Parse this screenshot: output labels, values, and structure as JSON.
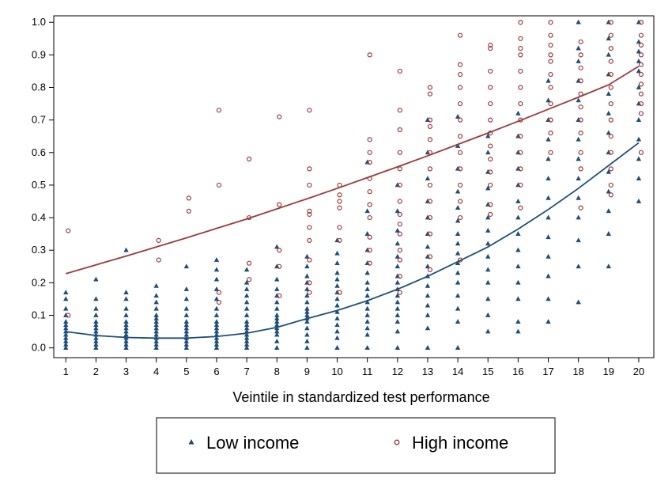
{
  "chart_data": {
    "type": "scatter",
    "xlabel": "Veintile in standardized test performance",
    "ylabel": "",
    "xlim": [
      0.6,
      20.5
    ],
    "ylim": [
      -0.03,
      1.02
    ],
    "x_ticks": [
      "1",
      "2",
      "3",
      "4",
      "5",
      "6",
      "7",
      "8",
      "9",
      "10",
      "11",
      "12",
      "13",
      "14",
      "15",
      "16",
      "17",
      "18",
      "19",
      "20"
    ],
    "y_ticks": [
      "0.0",
      "0.1",
      "0.2",
      "0.3",
      "0.4",
      "0.5",
      "0.6",
      "0.7",
      "0.8",
      "0.9",
      "1.0"
    ],
    "grid": false,
    "legend_position": "bottom",
    "series": [
      {
        "name": "Low income",
        "marker": "triangle",
        "color": "#1f4e79",
        "fit_line": {
          "x": [
            1,
            2,
            3,
            4,
            5,
            6,
            7,
            8,
            9,
            10,
            11,
            12,
            13,
            14,
            15,
            16,
            17,
            18,
            19,
            20
          ],
          "y": [
            0.05,
            0.038,
            0.032,
            0.03,
            0.03,
            0.035,
            0.045,
            0.063,
            0.09,
            0.115,
            0.145,
            0.18,
            0.22,
            0.265,
            0.31,
            0.365,
            0.425,
            0.49,
            0.56,
            0.63
          ]
        },
        "points": [
          {
            "x": 1,
            "values": [
              0.0,
              0.01,
              0.02,
              0.03,
              0.04,
              0.05,
              0.06,
              0.07,
              0.08,
              0.1,
              0.12,
              0.15,
              0.17
            ]
          },
          {
            "x": 2,
            "values": [
              0.0,
              0.01,
              0.02,
              0.03,
              0.04,
              0.05,
              0.06,
              0.07,
              0.08,
              0.1,
              0.12,
              0.15,
              0.21
            ]
          },
          {
            "x": 3,
            "values": [
              0.0,
              0.01,
              0.02,
              0.03,
              0.04,
              0.05,
              0.06,
              0.07,
              0.08,
              0.1,
              0.12,
              0.15,
              0.17,
              0.3
            ]
          },
          {
            "x": 4,
            "values": [
              0.0,
              0.01,
              0.02,
              0.03,
              0.04,
              0.05,
              0.06,
              0.07,
              0.08,
              0.09,
              0.1,
              0.12,
              0.14,
              0.16,
              0.19
            ]
          },
          {
            "x": 5,
            "values": [
              0.0,
              0.01,
              0.02,
              0.03,
              0.04,
              0.05,
              0.06,
              0.07,
              0.08,
              0.1,
              0.12,
              0.15,
              0.18,
              0.25
            ]
          },
          {
            "x": 6,
            "values": [
              0.0,
              0.01,
              0.02,
              0.03,
              0.04,
              0.05,
              0.06,
              0.07,
              0.08,
              0.1,
              0.12,
              0.15,
              0.18,
              0.21,
              0.24,
              0.27
            ]
          },
          {
            "x": 7,
            "values": [
              0.0,
              0.01,
              0.02,
              0.03,
              0.04,
              0.05,
              0.06,
              0.07,
              0.08,
              0.1,
              0.12,
              0.14,
              0.16,
              0.18,
              0.2,
              0.24
            ]
          },
          {
            "x": 8,
            "values": [
              0.0,
              0.02,
              0.04,
              0.05,
              0.06,
              0.07,
              0.08,
              0.09,
              0.1,
              0.12,
              0.14,
              0.16,
              0.18,
              0.21,
              0.25,
              0.31
            ]
          },
          {
            "x": 9,
            "values": [
              0.0,
              0.02,
              0.04,
              0.06,
              0.08,
              0.09,
              0.1,
              0.11,
              0.12,
              0.14,
              0.16,
              0.18,
              0.2,
              0.22,
              0.25,
              0.28
            ]
          },
          {
            "x": 10,
            "values": [
              0.0,
              0.03,
              0.05,
              0.07,
              0.09,
              0.11,
              0.13,
              0.15,
              0.17,
              0.19,
              0.21,
              0.23,
              0.26,
              0.29,
              0.33
            ]
          },
          {
            "x": 11,
            "values": [
              0.0,
              0.04,
              0.06,
              0.08,
              0.1,
              0.12,
              0.14,
              0.16,
              0.18,
              0.2,
              0.23,
              0.26,
              0.3,
              0.35,
              0.42,
              0.57
            ]
          },
          {
            "x": 12,
            "values": [
              0.0,
              0.05,
              0.08,
              0.1,
              0.12,
              0.14,
              0.16,
              0.18,
              0.2,
              0.22,
              0.25,
              0.28,
              0.32,
              0.36,
              0.42,
              0.5
            ]
          },
          {
            "x": 13,
            "values": [
              0.0,
              0.06,
              0.1,
              0.13,
              0.16,
              0.19,
              0.22,
              0.25,
              0.28,
              0.31,
              0.35,
              0.4,
              0.45,
              0.52,
              0.6,
              0.7
            ]
          },
          {
            "x": 14,
            "values": [
              0.0,
              0.08,
              0.12,
              0.16,
              0.2,
              0.23,
              0.26,
              0.29,
              0.32,
              0.35,
              0.39,
              0.43,
              0.48,
              0.55,
              0.62,
              0.71
            ]
          },
          {
            "x": 15,
            "values": [
              0.05,
              0.1,
              0.15,
              0.2,
              0.24,
              0.28,
              0.32,
              0.36,
              0.4,
              0.44,
              0.49,
              0.54,
              0.6,
              0.65
            ]
          },
          {
            "x": 16,
            "values": [
              0.05,
              0.08,
              0.15,
              0.2,
              0.25,
              0.3,
              0.35,
              0.4,
              0.45,
              0.5,
              0.55,
              0.6,
              0.65,
              0.72
            ]
          },
          {
            "x": 17,
            "values": [
              0.08,
              0.15,
              0.22,
              0.28,
              0.34,
              0.4,
              0.46,
              0.52,
              0.58,
              0.64,
              0.7,
              0.76,
              0.82
            ]
          },
          {
            "x": 18,
            "values": [
              0.14,
              0.25,
              0.33,
              0.4,
              0.46,
              0.52,
              0.58,
              0.64,
              0.7,
              0.76,
              0.82,
              0.88,
              0.92,
              1.0
            ]
          },
          {
            "x": 19,
            "values": [
              0.25,
              0.35,
              0.42,
              0.48,
              0.54,
              0.6,
              0.66,
              0.72,
              0.78,
              0.84,
              0.9,
              0.95,
              1.0
            ]
          },
          {
            "x": 20,
            "values": [
              0.45,
              0.52,
              0.58,
              0.64,
              0.7,
              0.75,
              0.8,
              0.85,
              0.88,
              0.91,
              0.94,
              1.0
            ]
          }
        ]
      },
      {
        "name": "High income",
        "marker": "circle",
        "color": "#9b3a3a",
        "fit_line": {
          "x": [
            1,
            2,
            3,
            4,
            5,
            6,
            7,
            8,
            9,
            10,
            11,
            12,
            13,
            14,
            15,
            16,
            17,
            18,
            19,
            20
          ],
          "y": [
            0.228,
            0.255,
            0.282,
            0.31,
            0.338,
            0.367,
            0.396,
            0.427,
            0.458,
            0.49,
            0.523,
            0.556,
            0.59,
            0.625,
            0.66,
            0.696,
            0.733,
            0.77,
            0.808,
            0.865
          ]
        },
        "points": [
          {
            "x": 1,
            "values": [
              0.1,
              0.36
            ]
          },
          {
            "x": 4,
            "values": [
              0.27,
              0.33
            ]
          },
          {
            "x": 5,
            "values": [
              0.42,
              0.46
            ]
          },
          {
            "x": 6,
            "values": [
              0.14,
              0.17,
              0.5,
              0.73
            ]
          },
          {
            "x": 7,
            "values": [
              0.21,
              0.26,
              0.4,
              0.58
            ]
          },
          {
            "x": 8,
            "values": [
              0.16,
              0.25,
              0.3,
              0.44,
              0.71
            ]
          },
          {
            "x": 9,
            "values": [
              0.17,
              0.2,
              0.27,
              0.33,
              0.37,
              0.41,
              0.42,
              0.5,
              0.55,
              0.73
            ]
          },
          {
            "x": 10,
            "values": [
              0.17,
              0.33,
              0.37,
              0.43,
              0.45,
              0.47,
              0.5
            ]
          },
          {
            "x": 11,
            "values": [
              0.26,
              0.3,
              0.34,
              0.4,
              0.44,
              0.48,
              0.52,
              0.57,
              0.6,
              0.64,
              0.9
            ]
          },
          {
            "x": 12,
            "values": [
              0.17,
              0.22,
              0.27,
              0.3,
              0.35,
              0.38,
              0.41,
              0.45,
              0.5,
              0.55,
              0.6,
              0.67,
              0.73,
              0.85
            ]
          },
          {
            "x": 13,
            "values": [
              0.24,
              0.28,
              0.35,
              0.4,
              0.45,
              0.5,
              0.55,
              0.6,
              0.64,
              0.68,
              0.7,
              0.78,
              0.8
            ]
          },
          {
            "x": 14,
            "values": [
              0.27,
              0.4,
              0.45,
              0.5,
              0.55,
              0.6,
              0.65,
              0.7,
              0.75,
              0.8,
              0.84,
              0.87,
              0.96
            ]
          },
          {
            "x": 15,
            "values": [
              0.41,
              0.44,
              0.5,
              0.54,
              0.58,
              0.62,
              0.66,
              0.7,
              0.75,
              0.8,
              0.85,
              0.92,
              0.93
            ]
          },
          {
            "x": 16,
            "values": [
              0.43,
              0.5,
              0.55,
              0.6,
              0.65,
              0.7,
              0.75,
              0.8,
              0.85,
              0.9,
              0.92,
              0.95,
              1.0
            ]
          },
          {
            "x": 17,
            "values": [
              0.6,
              0.66,
              0.7,
              0.75,
              0.8,
              0.84,
              0.88,
              0.9,
              0.93,
              0.96,
              1.0
            ]
          },
          {
            "x": 18,
            "values": [
              0.43,
              0.55,
              0.6,
              0.66,
              0.7,
              0.74,
              0.78,
              0.82,
              0.86,
              0.9,
              0.94
            ]
          },
          {
            "x": 19,
            "values": [
              0.47,
              0.5,
              0.55,
              0.6,
              0.65,
              0.7,
              0.75,
              0.8,
              0.84,
              0.88,
              0.92,
              0.96,
              1.0
            ]
          },
          {
            "x": 20,
            "values": [
              0.6,
              0.72,
              0.75,
              0.78,
              0.81,
              0.84,
              0.87,
              0.9,
              0.93,
              0.96,
              1.0
            ]
          }
        ]
      }
    ]
  }
}
